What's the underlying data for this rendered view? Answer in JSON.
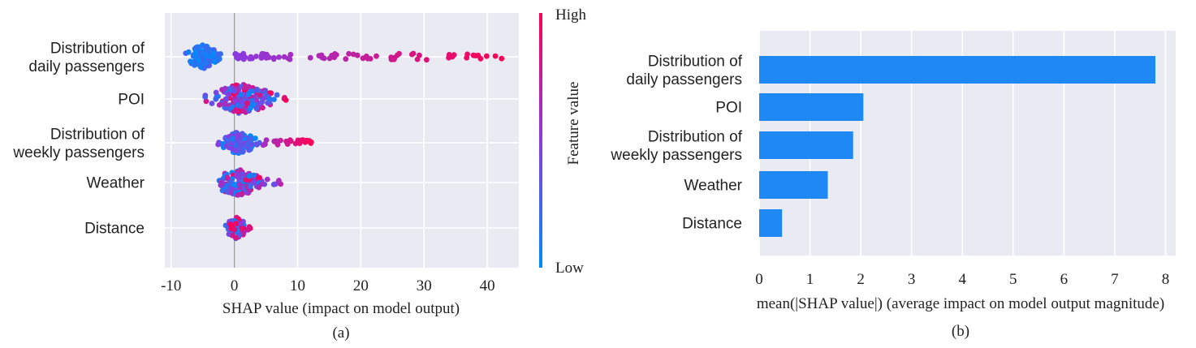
{
  "chart_data": [
    {
      "type": "scatter",
      "subtype": "shap-beeswarm",
      "caption": "(a)",
      "xlabel": "SHAP value (impact on model output)",
      "xlim": [
        -11,
        45
      ],
      "xticks": [
        "-10",
        "0",
        "10",
        "20",
        "30",
        "40"
      ],
      "xtick_values": [
        -10,
        0,
        10,
        20,
        30,
        40
      ],
      "grid": true,
      "features": [
        "Distribution of\ndaily passengers",
        "POI",
        "Distribution of\nweekly passengers",
        "Weather",
        "Distance"
      ],
      "feature_lines": [
        [
          "Distribution of",
          "daily passengers"
        ],
        [
          "POI"
        ],
        [
          "Distribution of",
          "weekly passengers"
        ],
        [
          "Weather"
        ],
        [
          "Distance"
        ]
      ],
      "shap_ranges": [
        {
          "feature": "Distribution of daily passengers",
          "min": -8.5,
          "max": 42.5
        },
        {
          "feature": "POI",
          "min": -5.5,
          "max": 8.2
        },
        {
          "feature": "Distribution of weekly passengers",
          "min": -3.2,
          "max": 12.4
        },
        {
          "feature": "Weather",
          "min": -4.5,
          "max": 7.6
        },
        {
          "feature": "Distance",
          "min": -2.0,
          "max": 2.6
        }
      ],
      "colorbar": {
        "title": "Feature value",
        "high_label": "High",
        "low_label": "Low",
        "high_color": "#ff0052",
        "low_color": "#008bfb"
      }
    },
    {
      "type": "bar",
      "orientation": "horizontal",
      "caption": "(b)",
      "categories": [
        "Distribution of\ndaily passengers",
        "POI",
        "Distribution of\nweekly passengers",
        "Weather",
        "Distance"
      ],
      "category_lines": [
        [
          "Distribution of",
          "daily passengers"
        ],
        [
          "POI"
        ],
        [
          "Distribution of",
          "weekly passengers"
        ],
        [
          "Weather"
        ],
        [
          "Distance"
        ]
      ],
      "values": [
        7.8,
        2.05,
        1.85,
        1.35,
        0.45
      ],
      "xlabel": "mean(|SHAP value|) (average impact on model output magnitude)",
      "xlim": [
        0,
        8.2
      ],
      "xticks": [
        "0",
        "1",
        "2",
        "3",
        "4",
        "5",
        "6",
        "7",
        "8"
      ],
      "xtick_values": [
        0,
        1,
        2,
        3,
        4,
        5,
        6,
        7,
        8
      ],
      "bar_color": "#1e88f5",
      "grid": true
    }
  ]
}
